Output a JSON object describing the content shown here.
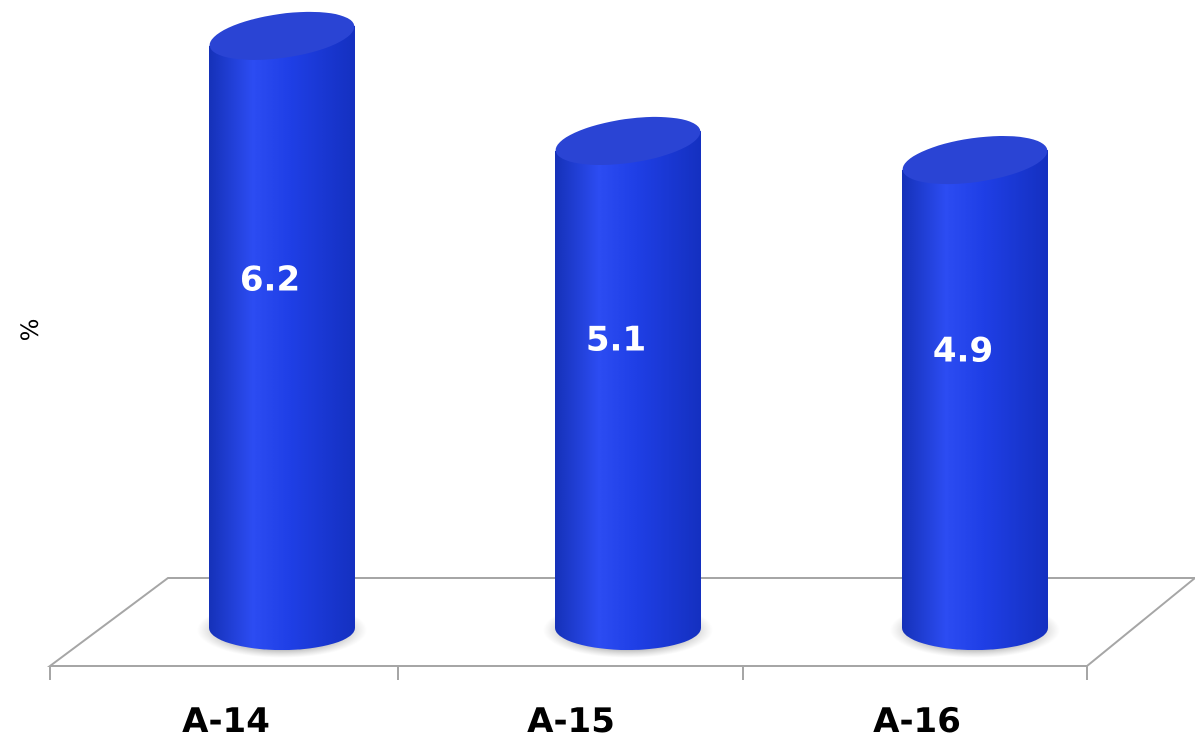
{
  "chart_data": {
    "type": "bar",
    "style": "3d-cylinder",
    "categories": [
      "A-14",
      "A-15",
      "A-16"
    ],
    "values": [
      6.2,
      5.1,
      4.9
    ],
    "data_labels": [
      "6.2",
      "5.1",
      "4.9"
    ],
    "title": "",
    "xlabel": "",
    "ylabel": "%",
    "ylim": [
      0,
      7
    ],
    "grid": false,
    "legend": "none",
    "colors": {
      "bar": "#1f3fe6",
      "bar_dark": "#1531b8",
      "bar_light": "#4a66f5",
      "top": "#2a44d4",
      "floor": "#a6a6a6",
      "text": "#000000",
      "label": "#ffffff"
    }
  }
}
